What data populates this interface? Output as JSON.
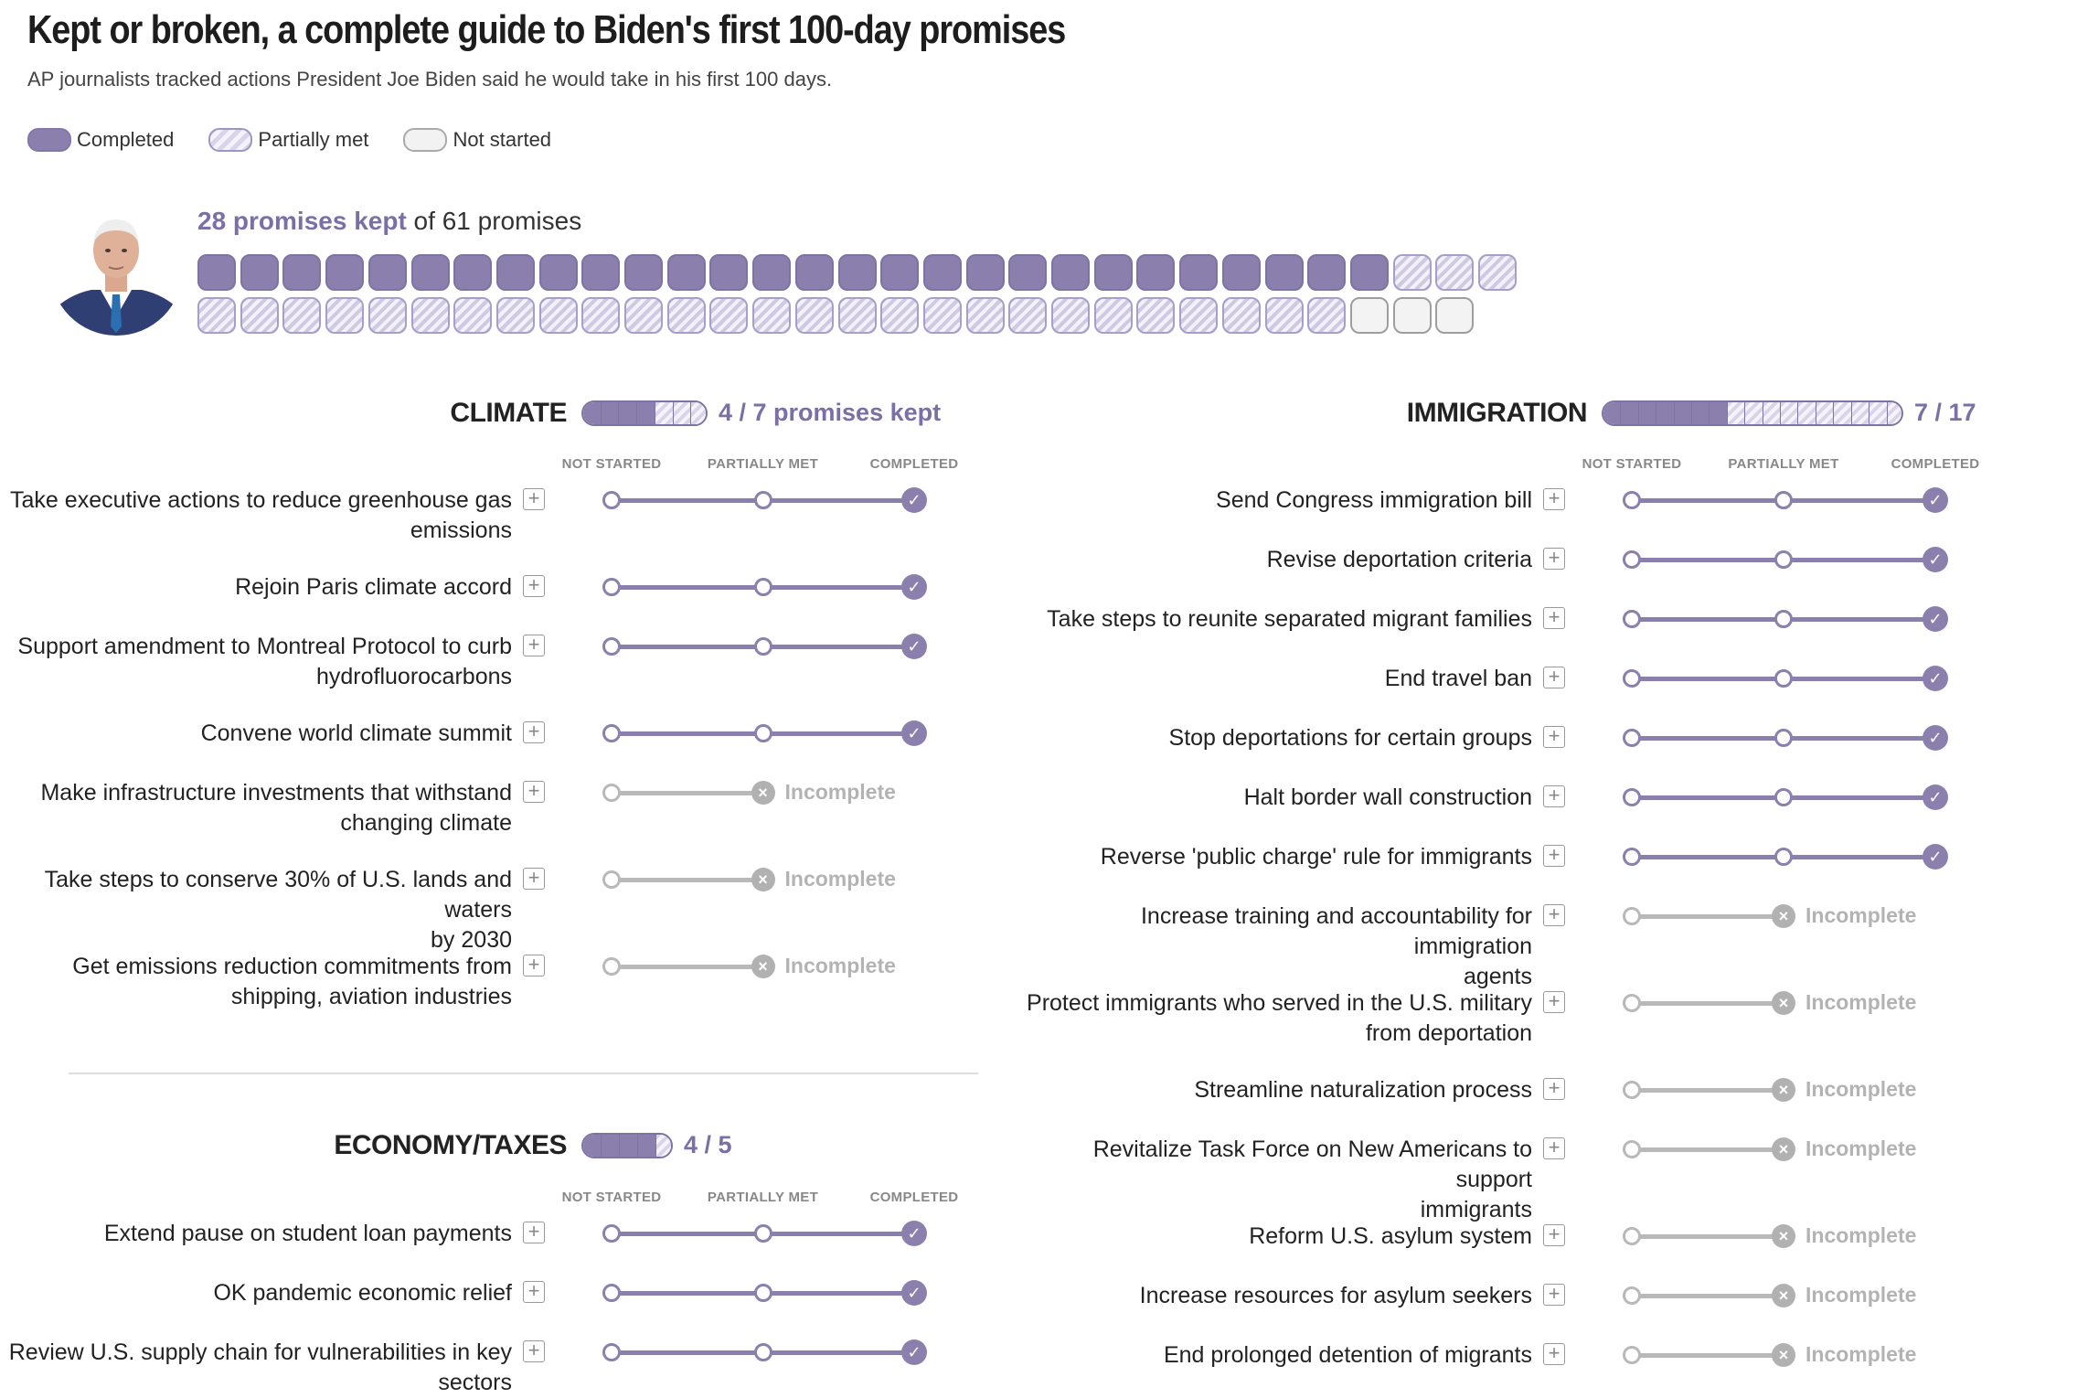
{
  "header": {
    "title": "Kept or broken, a complete guide to Biden's first 100-day promises",
    "subtitle": "AP journalists tracked actions President Joe Biden said he would take in his first 100 days."
  },
  "legend": [
    {
      "key": "completed",
      "label": "Completed"
    },
    {
      "key": "partial",
      "label": "Partially met"
    },
    {
      "key": "notstarted",
      "label": "Not started"
    }
  ],
  "summary": {
    "kept_text": "28 promises kept",
    "rest_text": " of 61 promises"
  },
  "overview": {
    "completed": 28,
    "partial": 30,
    "notstarted": 3,
    "total": 61,
    "per_row": 31
  },
  "column_headers": [
    "NOT STARTED",
    "PARTIALLY MET",
    "COMPLETED"
  ],
  "incomplete_label": "Incomplete",
  "sections": [
    {
      "id": "climate",
      "name": "CLIMATE",
      "count_text": "4 / 7 promises kept",
      "completed": 4,
      "total": 7,
      "promises": [
        {
          "label": [
            "Take executive actions to reduce greenhouse gas",
            "emissions"
          ],
          "status": "completed"
        },
        {
          "label": [
            "Rejoin Paris climate accord"
          ],
          "status": "completed"
        },
        {
          "label": [
            "Support amendment to Montreal Protocol to curb",
            "hydrofluorocarbons"
          ],
          "status": "completed"
        },
        {
          "label": [
            "Convene world climate summit"
          ],
          "status": "completed"
        },
        {
          "label": [
            "Make infrastructure investments that withstand",
            "changing climate"
          ],
          "status": "incomplete"
        },
        {
          "label": [
            "Take steps to conserve 30% of U.S. lands and waters",
            "by 2030"
          ],
          "status": "incomplete"
        },
        {
          "label": [
            "Get emissions reduction commitments from",
            "shipping, aviation industries"
          ],
          "status": "incomplete"
        }
      ]
    },
    {
      "id": "economy",
      "name": "ECONOMY/TAXES",
      "count_text": "4 / 5",
      "completed": 4,
      "total": 5,
      "promises": [
        {
          "label": [
            "Extend pause on student loan payments"
          ],
          "status": "completed"
        },
        {
          "label": [
            "OK pandemic economic relief"
          ],
          "status": "completed"
        },
        {
          "label": [
            "Review U.S. supply chain for vulnerabilities in key",
            "sectors"
          ],
          "status": "completed"
        }
      ]
    },
    {
      "id": "immigration",
      "name": "IMMIGRATION",
      "count_text": "7 / 17",
      "completed": 7,
      "total": 17,
      "promises": [
        {
          "label": [
            "Send Congress immigration bill"
          ],
          "status": "completed"
        },
        {
          "label": [
            "Revise deportation criteria"
          ],
          "status": "completed"
        },
        {
          "label": [
            "Take steps to reunite separated migrant families"
          ],
          "status": "completed"
        },
        {
          "label": [
            "End travel ban"
          ],
          "status": "completed"
        },
        {
          "label": [
            "Stop deportations for certain groups"
          ],
          "status": "completed"
        },
        {
          "label": [
            "Halt border wall construction"
          ],
          "status": "completed"
        },
        {
          "label": [
            "Reverse 'public charge' rule for immigrants"
          ],
          "status": "completed"
        },
        {
          "label": [
            "Increase training and accountability for immigration",
            "agents"
          ],
          "status": "incomplete"
        },
        {
          "label": [
            "Protect immigrants who served in the U.S. military",
            "from deportation"
          ],
          "status": "incomplete"
        },
        {
          "label": [
            "Streamline naturalization process"
          ],
          "status": "incomplete"
        },
        {
          "label": [
            "Revitalize Task Force on New Americans to support",
            "immigrants"
          ],
          "status": "incomplete"
        },
        {
          "label": [
            "Reform U.S. asylum system"
          ],
          "status": "incomplete"
        },
        {
          "label": [
            "Increase resources for asylum seekers"
          ],
          "status": "incomplete"
        },
        {
          "label": [
            "End prolonged detention of migrants"
          ],
          "status": "incomplete"
        }
      ]
    }
  ]
}
